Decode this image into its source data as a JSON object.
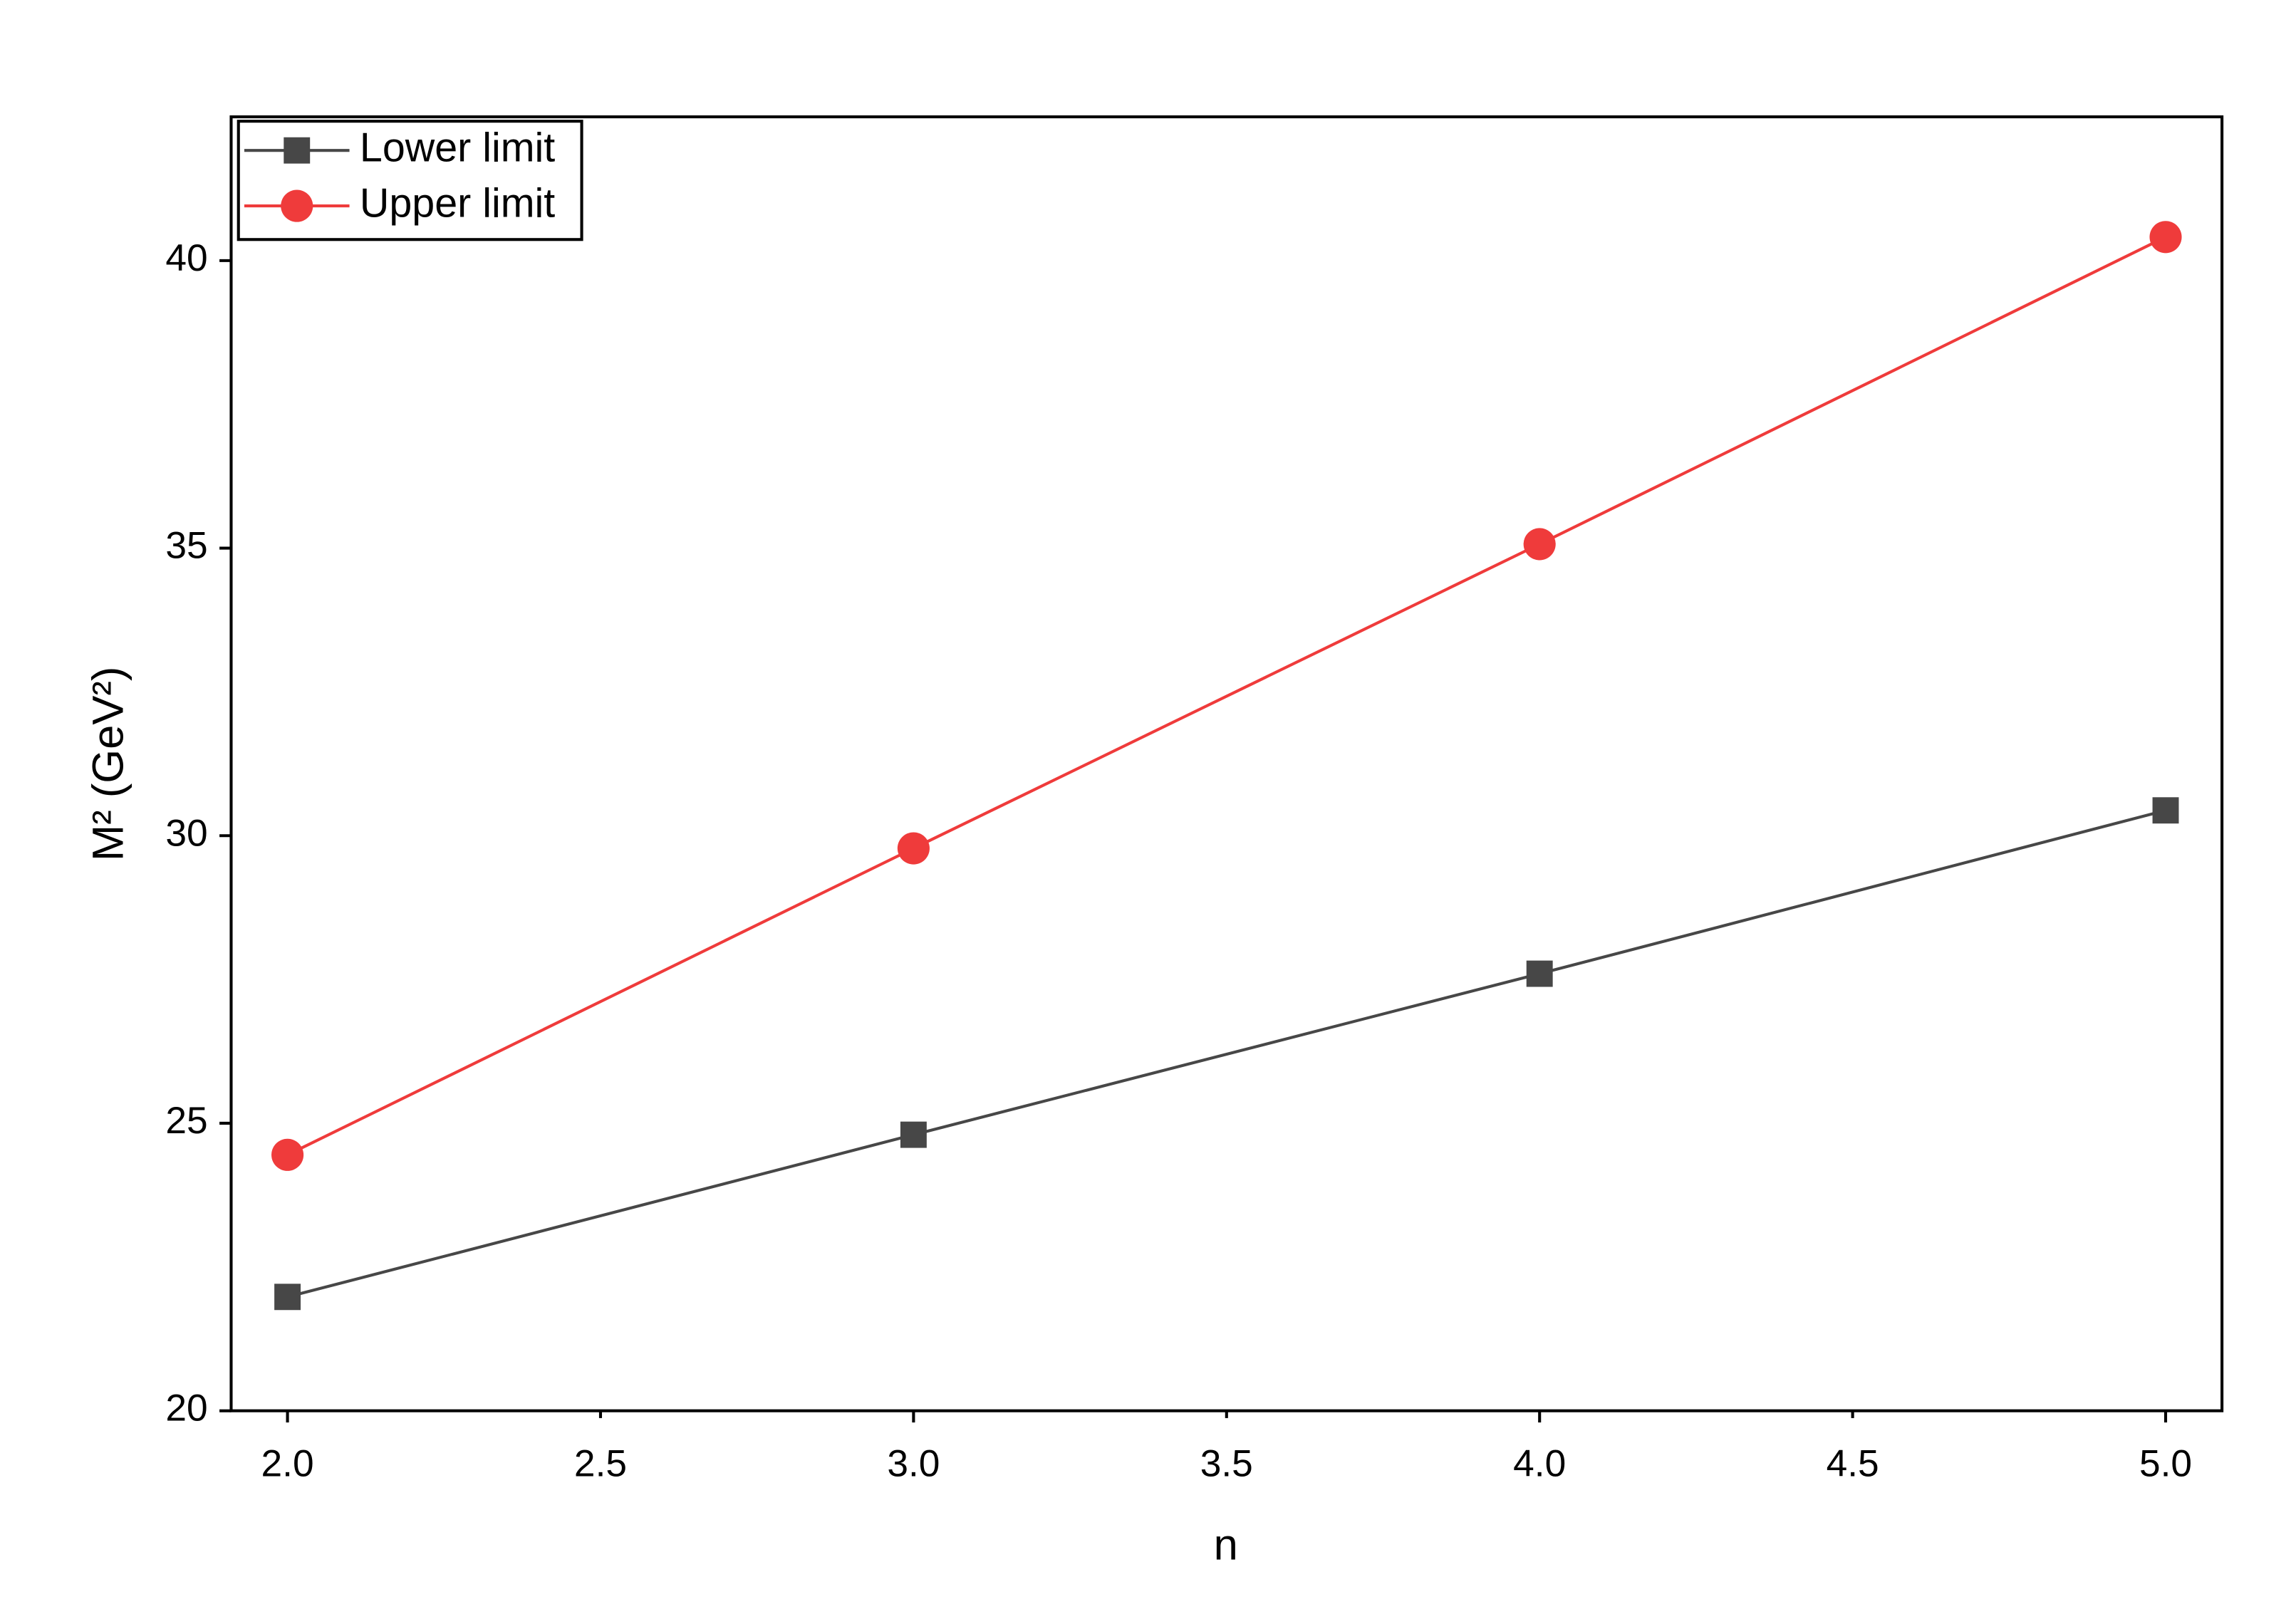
{
  "chart_data": {
    "type": "line",
    "x_label": "n",
    "y_label": "M² (GeV²)",
    "x": [
      2,
      3,
      4,
      5
    ],
    "series": [
      {
        "name": "Lower limit",
        "color": "#474747",
        "marker": "square",
        "values": [
          21.98,
          24.8,
          27.6,
          30.44
        ]
      },
      {
        "name": "Upper limit",
        "color": "#ef3b3b",
        "marker": "circle",
        "values": [
          24.45,
          29.78,
          35.07,
          40.41
        ]
      }
    ],
    "xlim": [
      1.91,
      5.09
    ],
    "ylim": [
      20,
      42.5
    ],
    "xticks": [
      {
        "value": 2,
        "label": "2.0"
      },
      2.5,
      {
        "value": 3,
        "label": "3.0"
      },
      3.5,
      {
        "value": 4,
        "label": "4.0"
      },
      4.5,
      {
        "value": 5,
        "label": "5.0"
      }
    ],
    "yticks": [
      20,
      25,
      30,
      35,
      40
    ],
    "grid": false,
    "legend": "upper-left"
  }
}
